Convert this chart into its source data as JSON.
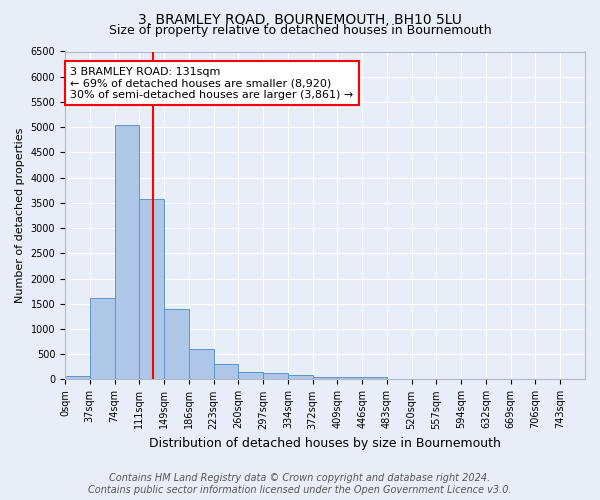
{
  "title": "3, BRAMLEY ROAD, BOURNEMOUTH, BH10 5LU",
  "subtitle": "Size of property relative to detached houses in Bournemouth",
  "xlabel": "Distribution of detached houses by size in Bournemouth",
  "ylabel": "Number of detached properties",
  "footer_line1": "Contains HM Land Registry data © Crown copyright and database right 2024.",
  "footer_line2": "Contains public sector information licensed under the Open Government Licence v3.0.",
  "bin_labels": [
    "0sqm",
    "37sqm",
    "74sqm",
    "111sqm",
    "149sqm",
    "186sqm",
    "223sqm",
    "260sqm",
    "297sqm",
    "334sqm",
    "372sqm",
    "409sqm",
    "446sqm",
    "483sqm",
    "520sqm",
    "557sqm",
    "594sqm",
    "632sqm",
    "669sqm",
    "706sqm",
    "743sqm"
  ],
  "bar_values": [
    75,
    1620,
    5040,
    3580,
    1400,
    610,
    300,
    155,
    125,
    95,
    45,
    40,
    55,
    0,
    0,
    0,
    0,
    0,
    0,
    0,
    0
  ],
  "bar_color": "#aec6e8",
  "bar_edge_color": "#5a96c8",
  "vline_x_bin": 3.62,
  "bin_width": 37,
  "annotation_title": "3 BRAMLEY ROAD: 131sqm",
  "annotation_line2": "← 69% of detached houses are smaller (8,920)",
  "annotation_line3": "30% of semi-detached houses are larger (3,861) →",
  "annotation_box_color": "white",
  "annotation_box_edge": "red",
  "vline_color": "red",
  "ylim": [
    0,
    6500
  ],
  "yticks": [
    0,
    500,
    1000,
    1500,
    2000,
    2500,
    3000,
    3500,
    4000,
    4500,
    5000,
    5500,
    6000,
    6500
  ],
  "background_color": "#e8eef8",
  "plot_background": "#e8eef8",
  "grid_color": "white",
  "title_fontsize": 10,
  "subtitle_fontsize": 9,
  "xlabel_fontsize": 9,
  "ylabel_fontsize": 8,
  "tick_fontsize": 7,
  "annotation_fontsize": 8,
  "footer_fontsize": 7
}
